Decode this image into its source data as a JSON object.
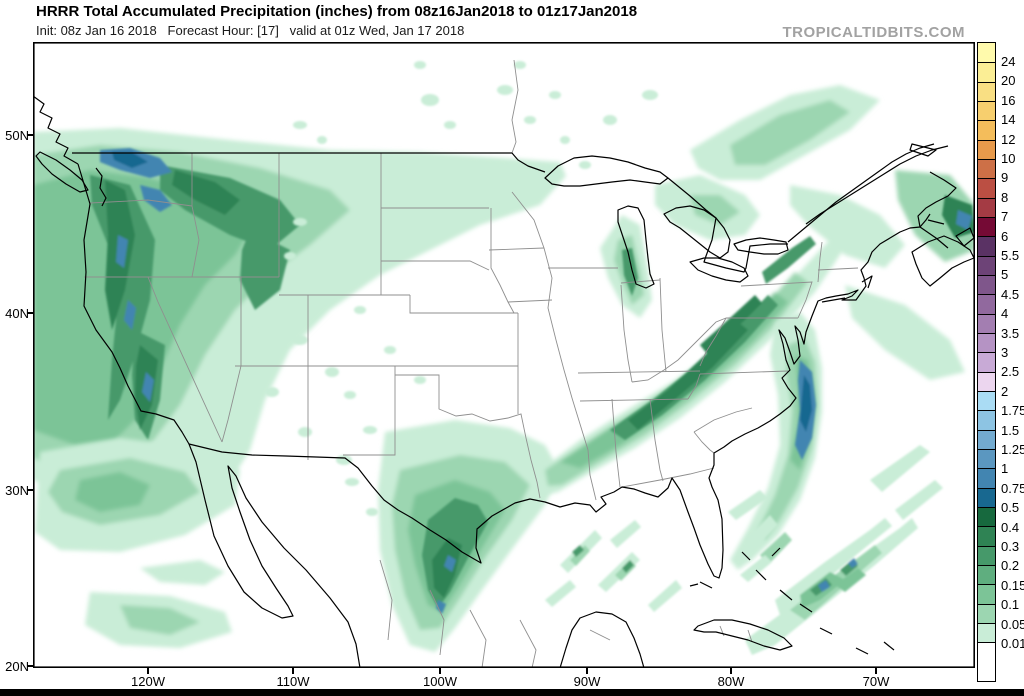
{
  "header": {
    "title": "HRRR Total Accumulated Precipitation (inches) from 08z16Jan2018 to 01z17Jan2018",
    "init_line": "Init: 08z Jan 16 2018   Forecast Hour: [17]   valid at 01z Wed, Jan 17 2018",
    "watermark": "TROPICALTIDBITS.COM"
  },
  "map": {
    "lat_ticks": [
      "50N",
      "40N",
      "30N",
      "20N"
    ],
    "lon_ticks": [
      "120W",
      "110W",
      "100W",
      "90W",
      "80W",
      "70W"
    ]
  },
  "colorbar": {
    "units": "inches",
    "levels_bottom_to_top": [
      "0.01",
      "0.05",
      "0.1",
      "0.15",
      "0.2",
      "0.3",
      "0.4",
      "0.5",
      "0.75",
      "1",
      "1.25",
      "1.5",
      "1.75",
      "2",
      "2.5",
      "3",
      "3.5",
      "4",
      "4.5",
      "5",
      "5.5",
      "6",
      "7",
      "8",
      "9",
      "10",
      "12",
      "14",
      "16",
      "20",
      "24"
    ],
    "colors_bottom_to_top": [
      "#ffffff",
      "#c9edd7",
      "#9cd6b1",
      "#7cc497",
      "#5fae7f",
      "#46996a",
      "#2f8354",
      "#17693e",
      "#186890",
      "#4285b1",
      "#5b97c0",
      "#73abd0",
      "#8dc4e3",
      "#aadcf4",
      "#ecd6ef",
      "#c8aad6",
      "#b593c4",
      "#a37eb1",
      "#91699e",
      "#7f568b",
      "#6d4377",
      "#5a3264",
      "#750a35",
      "#a43b44",
      "#bb4f43",
      "#cd7047",
      "#e89a4b",
      "#f4bd5b",
      "#f7cf6e",
      "#f9df83",
      "#fbee95",
      "#fffaac"
    ]
  }
}
